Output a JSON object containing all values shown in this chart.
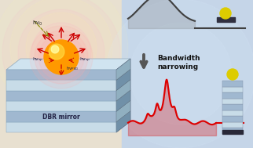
{
  "bg_left": "#e8e0d0",
  "bg_right": "#c5d5e8",
  "text_bandwidth": "Bandwidth\nnarrowing",
  "text_dbr": "DBR mirror",
  "broad_peak_color": "#404040",
  "narrow_peak_color": "#dd0000",
  "dbr_layer_light": "#c8dce8",
  "dbr_layer_dark": "#a0b8d0",
  "dbr_side_light": "#90afc0",
  "dbr_side_dark": "#7090a8",
  "sphere_orange": "#ff9900",
  "sphere_highlight": "#ffdd44",
  "sphere_bright": "#ffffaa",
  "sp_glow": "#88cc88",
  "arrow_red": "#cc0000",
  "arrow_gray": "#555555",
  "sphere_yellow": "#ddcc00",
  "figure_width": 3.22,
  "figure_height": 1.89,
  "dpi": 100
}
